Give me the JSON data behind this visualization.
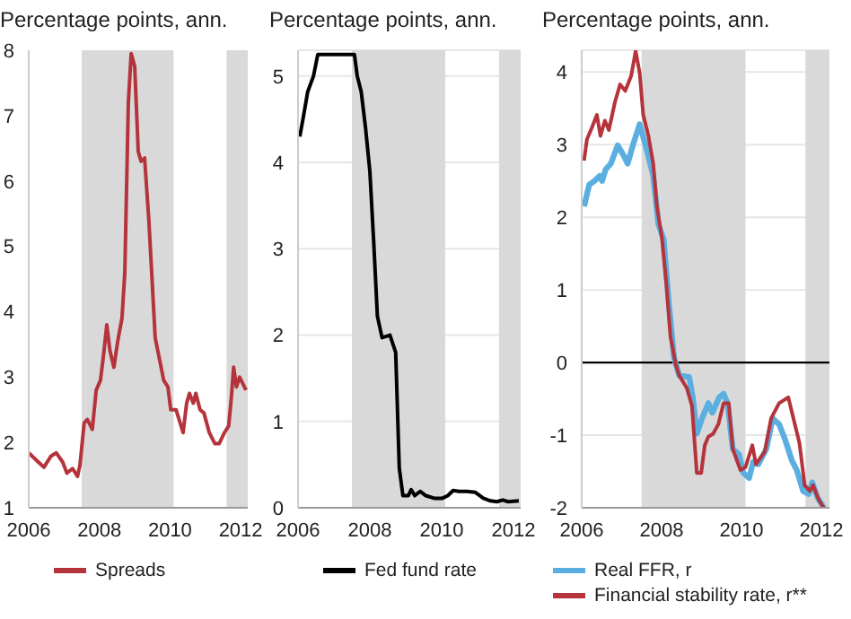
{
  "chart_data": [
    {
      "type": "line",
      "ylabel": "Percentage points, ann.",
      "xlim": [
        2006,
        2012.2
      ],
      "xticks": [
        2006,
        2008,
        2010,
        2012
      ],
      "ylim": [
        1,
        8
      ],
      "yticks": [
        1,
        2,
        3,
        4,
        5,
        6,
        7,
        8
      ],
      "grid": false,
      "legend": "bottom",
      "bands": [
        {
          "axis": "x",
          "from": 2007.5,
          "to": 2010.1,
          "color": "#d9d9d9"
        },
        {
          "axis": "x",
          "from": 2011.6,
          "to": 2012.2,
          "color": "#d9d9d9"
        }
      ],
      "series": [
        {
          "name": "Spreads",
          "color": "#b5333a",
          "x": [
            2006.0,
            2006.27,
            2006.43,
            2006.63,
            2006.78,
            2006.96,
            2007.08,
            2007.24,
            2007.38,
            2007.45,
            2007.57,
            2007.66,
            2007.8,
            2007.91,
            2008.03,
            2008.11,
            2008.21,
            2008.3,
            2008.41,
            2008.52,
            2008.64,
            2008.72,
            2008.82,
            2008.9,
            2009.0,
            2009.1,
            2009.18,
            2009.28,
            2009.4,
            2009.58,
            2009.71,
            2009.82,
            2009.94,
            2010.02,
            2010.17,
            2010.37,
            2010.47,
            2010.55,
            2010.66,
            2010.73,
            2010.85,
            2010.96,
            2011.11,
            2011.27,
            2011.39,
            2011.54,
            2011.66,
            2011.73,
            2011.8,
            2011.88,
            2011.97,
            2012.15
          ],
          "values": [
            1.84,
            1.7,
            1.62,
            1.79,
            1.84,
            1.7,
            1.53,
            1.6,
            1.48,
            1.65,
            2.3,
            2.35,
            2.2,
            2.8,
            2.95,
            3.3,
            3.8,
            3.4,
            3.15,
            3.55,
            3.9,
            4.6,
            7.2,
            7.95,
            7.75,
            6.45,
            6.3,
            6.35,
            5.4,
            3.6,
            3.25,
            2.95,
            2.85,
            2.5,
            2.5,
            2.15,
            2.6,
            2.75,
            2.6,
            2.75,
            2.5,
            2.45,
            2.15,
            1.98,
            1.98,
            2.15,
            2.25,
            2.65,
            3.15,
            2.85,
            3.0,
            2.8
          ]
        }
      ]
    },
    {
      "type": "line",
      "ylabel": "Percentage points, ann.",
      "xlim": [
        2006,
        2012.2
      ],
      "xticks": [
        2006,
        2008,
        2010,
        2012
      ],
      "ylim": [
        0,
        5.3
      ],
      "yticks": [
        0,
        1,
        2,
        3,
        4,
        5
      ],
      "grid": "y",
      "legend": "bottom",
      "bands": [
        {
          "axis": "x",
          "from": 2007.5,
          "to": 2010.1,
          "color": "#d9d9d9"
        },
        {
          "axis": "x",
          "from": 2011.6,
          "to": 2012.2,
          "color": "#d9d9d9"
        }
      ],
      "series": [
        {
          "name": "Fed fund rate",
          "color": "#000000",
          "x": [
            2006.05,
            2006.17,
            2006.27,
            2006.43,
            2006.55,
            2006.8,
            2007.11,
            2007.57,
            2007.65,
            2007.76,
            2007.88,
            2008.0,
            2008.11,
            2008.21,
            2008.34,
            2008.56,
            2008.72,
            2008.82,
            2008.92,
            2009.07,
            2009.15,
            2009.25,
            2009.4,
            2009.56,
            2009.79,
            2010.02,
            2010.17,
            2010.32,
            2010.47,
            2010.7,
            2010.93,
            2011.16,
            2011.36,
            2011.54,
            2011.7,
            2011.85,
            2012.15
          ],
          "values": [
            4.3,
            4.58,
            4.82,
            5.0,
            5.25,
            5.25,
            5.25,
            5.25,
            5.0,
            4.82,
            4.4,
            3.9,
            3.06,
            2.22,
            1.97,
            2.0,
            1.8,
            0.46,
            0.14,
            0.14,
            0.21,
            0.14,
            0.19,
            0.14,
            0.11,
            0.11,
            0.14,
            0.2,
            0.19,
            0.19,
            0.18,
            0.11,
            0.08,
            0.07,
            0.09,
            0.07,
            0.08
          ]
        }
      ]
    },
    {
      "type": "line",
      "ylabel": "Percentage points, ann.",
      "xlim": [
        2006,
        2012.2
      ],
      "xticks": [
        2006,
        2008,
        2010,
        2012
      ],
      "ylim": [
        -2,
        4.3
      ],
      "yticks": [
        -2,
        -1,
        0,
        1,
        2,
        3,
        4
      ],
      "grid": "y",
      "legend": "bottom",
      "bands": [
        {
          "axis": "x",
          "from": 2007.5,
          "to": 2010.1,
          "color": "#d9d9d9"
        },
        {
          "axis": "x",
          "from": 2011.6,
          "to": 2012.2,
          "color": "#d9d9d9"
        }
      ],
      "ref_lines": [
        {
          "axis": "y",
          "value": 0,
          "color": "#000000"
        }
      ],
      "series": [
        {
          "name": "Real FFR, r",
          "color": "#5aaee0",
          "x": [
            2006.06,
            2006.19,
            2006.32,
            2006.45,
            2006.51,
            2006.6,
            2006.73,
            2006.9,
            2007.03,
            2007.15,
            2007.28,
            2007.45,
            2007.6,
            2007.79,
            2007.92,
            2008.05,
            2008.18,
            2008.31,
            2008.44,
            2008.69,
            2008.78,
            2008.88,
            2009.01,
            2009.17,
            2009.27,
            2009.44,
            2009.55,
            2009.65,
            2009.78,
            2009.94,
            2010.04,
            2010.19,
            2010.29,
            2010.42,
            2010.62,
            2010.78,
            2010.94,
            2011.09,
            2011.26,
            2011.38,
            2011.54,
            2011.68,
            2011.77,
            2011.9,
            2012.06
          ],
          "values": [
            2.15,
            2.45,
            2.5,
            2.57,
            2.5,
            2.66,
            2.74,
            2.99,
            2.87,
            2.74,
            2.99,
            3.28,
            2.99,
            2.57,
            1.9,
            1.7,
            0.82,
            0.07,
            -0.18,
            -0.2,
            -0.48,
            -0.98,
            -0.77,
            -0.56,
            -0.69,
            -0.48,
            -0.43,
            -0.56,
            -1.19,
            -1.27,
            -1.52,
            -1.59,
            -1.37,
            -1.4,
            -1.19,
            -0.77,
            -0.85,
            -1.06,
            -1.35,
            -1.48,
            -1.77,
            -1.81,
            -1.65,
            -1.86,
            -2.0
          ]
        },
        {
          "name": "Financial stability rate, r**",
          "color": "#b5333a",
          "x": [
            2006.06,
            2006.13,
            2006.26,
            2006.38,
            2006.47,
            2006.58,
            2006.68,
            2006.83,
            2006.96,
            2007.09,
            2007.24,
            2007.35,
            2007.45,
            2007.54,
            2007.67,
            2007.79,
            2007.88,
            2008.01,
            2008.12,
            2008.22,
            2008.35,
            2008.44,
            2008.63,
            2008.76,
            2008.88,
            2008.99,
            2009.08,
            2009.17,
            2009.29,
            2009.42,
            2009.55,
            2009.68,
            2009.78,
            2009.97,
            2010.1,
            2010.27,
            2010.36,
            2010.58,
            2010.74,
            2010.94,
            2011.17,
            2011.45,
            2011.58,
            2011.71,
            2011.79,
            2011.94,
            2012.06
          ],
          "values": [
            2.78,
            3.07,
            3.24,
            3.41,
            3.12,
            3.33,
            3.2,
            3.58,
            3.83,
            3.74,
            3.95,
            4.29,
            3.99,
            3.41,
            3.12,
            2.74,
            2.16,
            1.7,
            1.07,
            0.36,
            -0.02,
            -0.18,
            -0.35,
            -0.6,
            -1.52,
            -1.52,
            -1.14,
            -1.02,
            -0.98,
            -0.85,
            -0.56,
            -0.56,
            -1.19,
            -1.48,
            -1.44,
            -1.14,
            -1.4,
            -1.23,
            -0.77,
            -0.56,
            -0.48,
            -1.11,
            -1.69,
            -1.77,
            -1.69,
            -1.9,
            -2.0
          ]
        }
      ]
    }
  ]
}
